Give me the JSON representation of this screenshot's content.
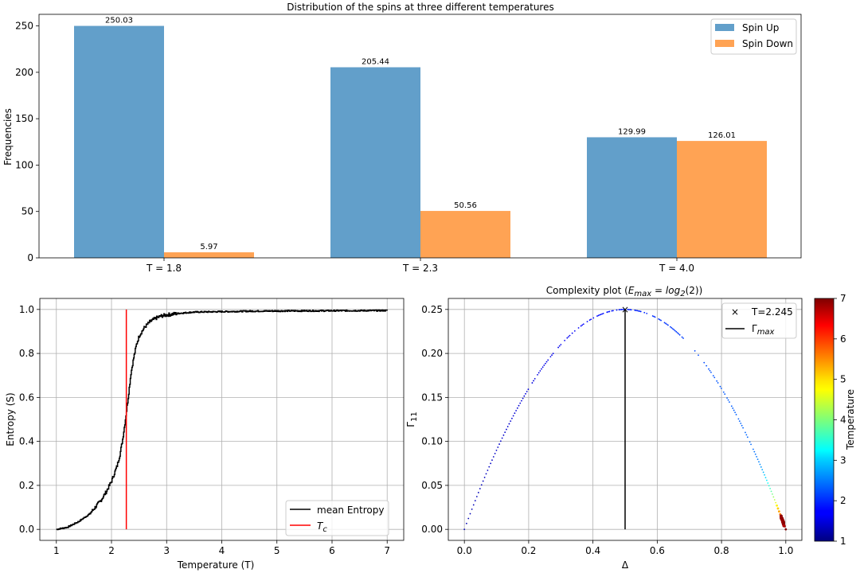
{
  "chart_data": [
    {
      "type": "bar",
      "title": "Distribution of the spins at three different temperatures",
      "ylabel": "Frequencies",
      "xlabel": "",
      "categories": [
        "T = 1.8",
        "T = 2.3",
        "T = 4.0"
      ],
      "series": [
        {
          "name": "Spin Up",
          "values": [
            250.03,
            205.44,
            129.99
          ],
          "labels": [
            "250.03",
            "205.44",
            "129.99"
          ],
          "color": "#629fca"
        },
        {
          "name": "Spin Down",
          "values": [
            5.97,
            50.56,
            126.01
          ],
          "labels": [
            "5.97",
            "50.56",
            "126.01"
          ],
          "color": "#ffa354"
        }
      ],
      "ylim": [
        0,
        262.5
      ],
      "yticks": [
        0,
        50,
        100,
        150,
        200,
        250
      ],
      "grid": false,
      "legend": "top-right"
    },
    {
      "type": "line",
      "title": "",
      "xlabel": "Temperature (T)",
      "ylabel": "Entropy (S)",
      "xlim": [
        0.7,
        7.3
      ],
      "ylim": [
        -0.05,
        1.05
      ],
      "xticks": [
        1,
        2,
        3,
        4,
        5,
        6,
        7
      ],
      "yticks": [
        0.0,
        0.2,
        0.4,
        0.6,
        0.8,
        1.0
      ],
      "grid": true,
      "legend": "bottom-right",
      "series": [
        {
          "name": "mean Entropy",
          "color": "#000000",
          "x": [
            1.0,
            1.2,
            1.4,
            1.6,
            1.8,
            1.9,
            2.0,
            2.1,
            2.15,
            2.2,
            2.25,
            2.3,
            2.35,
            2.4,
            2.45,
            2.5,
            2.6,
            2.7,
            2.8,
            2.9,
            3.0,
            3.2,
            3.5,
            4.0,
            4.5,
            5.0,
            6.0,
            7.0
          ],
          "y": [
            0.0,
            0.01,
            0.035,
            0.07,
            0.13,
            0.17,
            0.22,
            0.29,
            0.34,
            0.41,
            0.5,
            0.6,
            0.71,
            0.78,
            0.84,
            0.88,
            0.92,
            0.945,
            0.96,
            0.97,
            0.975,
            0.982,
            0.988,
            0.99,
            0.992,
            0.993,
            0.994,
            0.995
          ]
        },
        {
          "name": "T_c",
          "color": "#ff0000",
          "x": [
            2.269,
            2.269
          ],
          "y": [
            0.0,
            1.0
          ]
        }
      ]
    },
    {
      "type": "scatter",
      "title": "Complexity plot (E_max = log_2(2))",
      "xlabel": "Δ",
      "ylabel": "Γ_11",
      "xlim": [
        -0.05,
        1.05
      ],
      "ylim": [
        -0.0125,
        0.2625
      ],
      "xticks": [
        0.0,
        0.2,
        0.4,
        0.6,
        0.8,
        1.0
      ],
      "yticks": [
        0.0,
        0.05,
        0.1,
        0.15,
        0.2,
        0.25
      ],
      "grid": true,
      "legend": "top-right",
      "curve": "Γ = 4·Δ·(1−Δ)·0.25",
      "marker": {
        "name": "T=2.245",
        "x": 0.5,
        "y": 0.25,
        "color": "#1f60ff"
      },
      "gamma_max": {
        "name": "Γ_max",
        "x": 0.5,
        "y": [
          0.0,
          0.25
        ],
        "color": "#000000"
      },
      "colorbar": {
        "label": "Temperature",
        "range": [
          1,
          7
        ],
        "ticks": [
          1,
          2,
          3,
          4,
          5,
          6,
          7
        ],
        "colormap": "jet"
      }
    }
  ],
  "text": {
    "title_a": "Distribution of the spins at three different temperatures",
    "legend_up": "Spin Up",
    "legend_down": "Spin Down",
    "ylabel_a": "Frequencies",
    "xlabel_b": "Temperature (T)",
    "ylabel_b": "Entropy (S)",
    "legend_entropy": "mean Entropy",
    "legend_tc_T": "T",
    "legend_tc_sub": "c",
    "title_c_pre": "Complexity plot (",
    "title_c_E": "E",
    "title_c_max": "max",
    "title_c_eq": " = log",
    "title_c_2": "2",
    "title_c_post": "(2))",
    "xlabel_c": "Δ",
    "ylabel_c_G": "Γ",
    "ylabel_c_sub": "11",
    "legend_marker": "T=2.245",
    "legend_gmax_G": "Γ",
    "legend_gmax_sub": "max",
    "colorbar_label": "Temperature"
  }
}
